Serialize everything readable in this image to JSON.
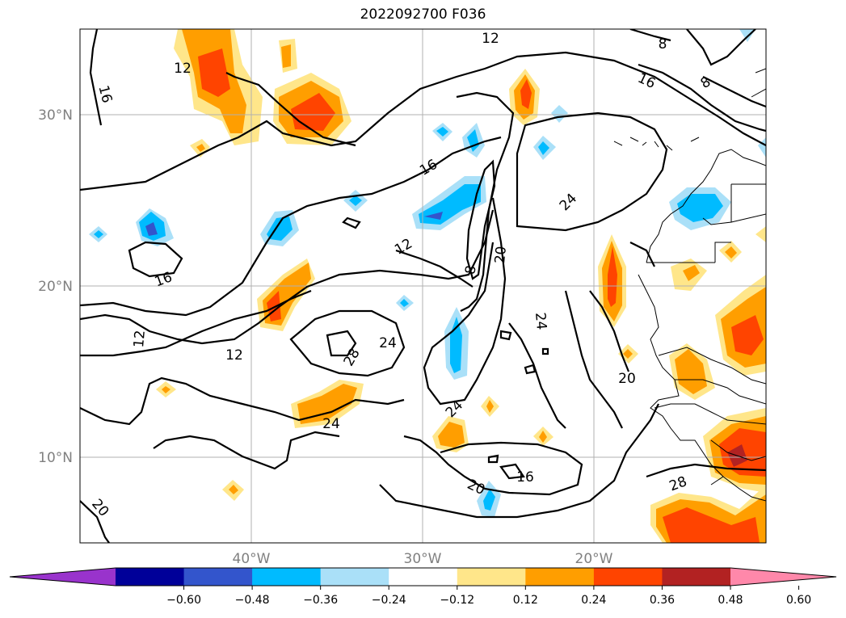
{
  "title": "2022092700 F036",
  "map": {
    "lat_ticks": [
      {
        "label": "30°N",
        "value": 30
      },
      {
        "label": "20°N",
        "value": 20
      },
      {
        "label": "10°N",
        "value": 10
      }
    ],
    "lon_ticks": [
      {
        "label": "40°W",
        "value": -40
      },
      {
        "label": "30°W",
        "value": -30
      },
      {
        "label": "20°W",
        "value": -20
      }
    ],
    "lon_range": [
      -50,
      -10
    ],
    "lat_range": [
      5,
      35
    ],
    "grid": true,
    "contour_labels": [
      "12",
      "16",
      "12",
      "8",
      "8",
      "16",
      "16",
      "24",
      "12",
      "8",
      "20",
      "16",
      "12",
      "12",
      "28",
      "24",
      "24",
      "24",
      "20",
      "24",
      "20",
      "16",
      "20",
      "28"
    ]
  },
  "colorbar": {
    "levels": [
      "−0.60",
      "−0.48",
      "−0.36",
      "−0.24",
      "−0.12",
      "0.12",
      "0.24",
      "0.36",
      "0.48",
      "0.60"
    ],
    "colors": [
      "#9933cc",
      "#000099",
      "#3355cc",
      "#00bbff",
      "#aae0f8",
      "#ffffff",
      "#ffe68a",
      "#ff9e00",
      "#ff4400",
      "#b22222",
      "#ff88aa"
    ],
    "extend": "both"
  }
}
